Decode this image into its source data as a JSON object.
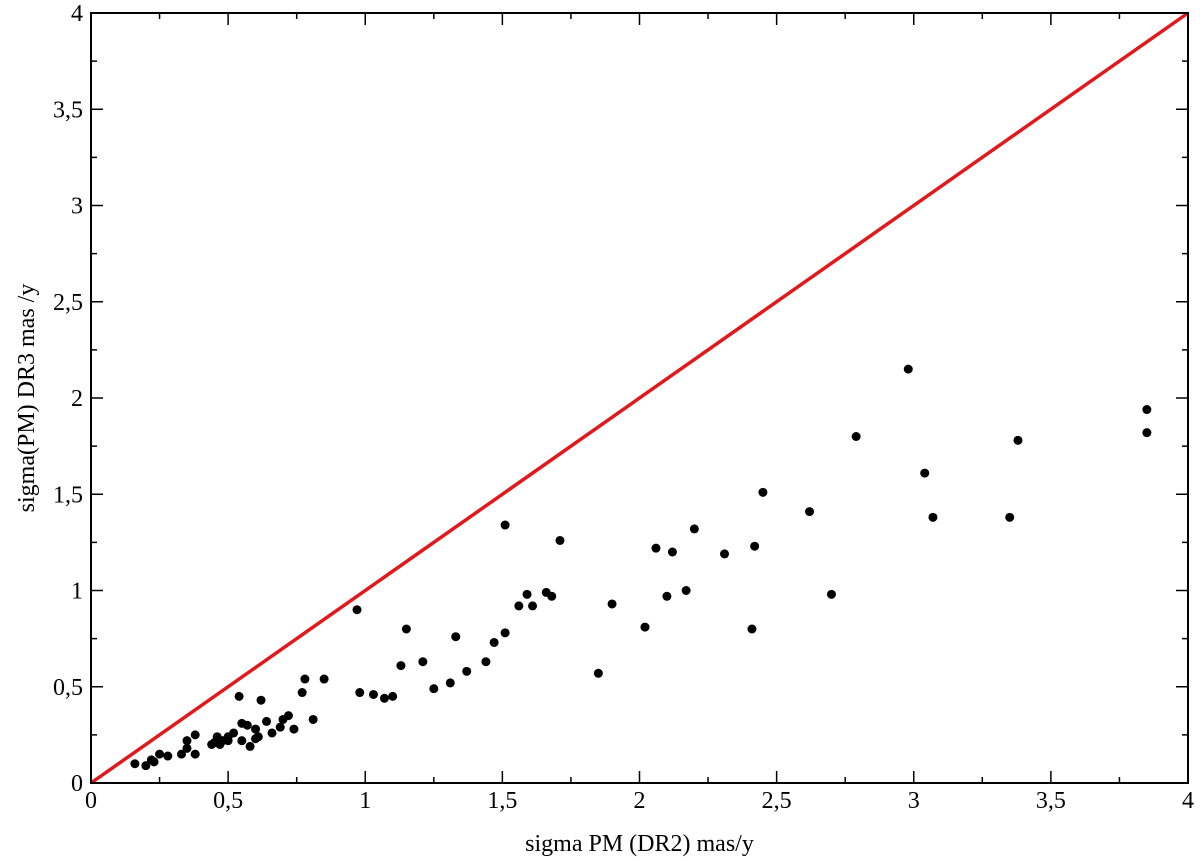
{
  "chart_data": {
    "type": "scatter",
    "title": "",
    "xlabel": "sigma PM (DR2)  mas/y",
    "ylabel": "sigma(PM) DR3   mas /y",
    "xlim": [
      0,
      4
    ],
    "ylim": [
      0,
      4
    ],
    "grid": false,
    "legend": "none",
    "x_ticks": [
      0,
      0.5,
      1,
      1.5,
      2,
      2.5,
      3,
      3.5,
      4
    ],
    "x_tick_labels": [
      "0",
      "0,5",
      "1",
      "1,5",
      "2",
      "2,5",
      "3",
      "3,5",
      "4"
    ],
    "y_ticks": [
      0,
      0.5,
      1,
      1.5,
      2,
      2.5,
      3,
      3.5,
      4
    ],
    "y_tick_labels": [
      "0",
      "0,5",
      "1",
      "1,5",
      "2",
      "2,5",
      "3",
      "3,5",
      "4"
    ],
    "marker_color": "#000000",
    "series": [
      {
        "kind": "points",
        "x": [
          0.16,
          0.2,
          0.22,
          0.23,
          0.25,
          0.28,
          0.33,
          0.35,
          0.35,
          0.38,
          0.38,
          0.44,
          0.45,
          0.46,
          0.47,
          0.48,
          0.5,
          0.5,
          0.52,
          0.54,
          0.55,
          0.55,
          0.57,
          0.58,
          0.6,
          0.6,
          0.61,
          0.62,
          0.64,
          0.66,
          0.69,
          0.7,
          0.72,
          0.74,
          0.77,
          0.78,
          0.81,
          0.85,
          0.97,
          0.98,
          1.03,
          1.07,
          1.1,
          1.13,
          1.15,
          1.21,
          1.25,
          1.31,
          1.33,
          1.37,
          1.44,
          1.47,
          1.51,
          1.51,
          1.56,
          1.59,
          1.61,
          1.66,
          1.68,
          1.71,
          1.85,
          1.9,
          2.02,
          2.06,
          2.1,
          2.12,
          2.17,
          2.2,
          2.31,
          2.41,
          2.42,
          2.45,
          2.62,
          2.7,
          2.79,
          2.98,
          3.04,
          3.07,
          3.35,
          3.38,
          3.85,
          3.85
        ],
        "y": [
          0.1,
          0.09,
          0.12,
          0.11,
          0.15,
          0.14,
          0.15,
          0.18,
          0.22,
          0.15,
          0.25,
          0.2,
          0.21,
          0.24,
          0.2,
          0.22,
          0.22,
          0.24,
          0.26,
          0.45,
          0.22,
          0.31,
          0.3,
          0.19,
          0.23,
          0.28,
          0.24,
          0.43,
          0.32,
          0.26,
          0.29,
          0.33,
          0.35,
          0.28,
          0.47,
          0.54,
          0.33,
          0.54,
          0.9,
          0.47,
          0.46,
          0.44,
          0.45,
          0.61,
          0.8,
          0.63,
          0.49,
          0.52,
          0.76,
          0.58,
          0.63,
          0.73,
          0.78,
          1.34,
          0.92,
          0.98,
          0.92,
          0.99,
          0.97,
          1.26,
          0.57,
          0.93,
          0.81,
          1.22,
          0.97,
          1.2,
          1.0,
          1.32,
          1.19,
          0.8,
          1.23,
          1.51,
          1.41,
          0.98,
          1.8,
          2.15,
          1.61,
          1.38,
          1.38,
          1.78,
          1.94,
          1.82
        ]
      },
      {
        "kind": "reference-line",
        "color": "#e0191c",
        "x": [
          0,
          4
        ],
        "y": [
          0,
          4
        ]
      }
    ]
  }
}
